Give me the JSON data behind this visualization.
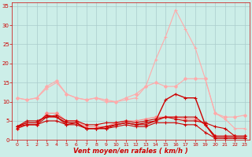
{
  "background_color": "#cceee8",
  "grid_color": "#aacccc",
  "xlabel": "Vent moyen/en rafales ( km/h )",
  "xlabel_color": "#cc0000",
  "tick_color": "#cc0000",
  "xlim": [
    -0.5,
    23.5
  ],
  "ylim": [
    0,
    36
  ],
  "yticks": [
    0,
    5,
    10,
    15,
    20,
    25,
    30,
    35
  ],
  "xticks": [
    0,
    1,
    2,
    3,
    4,
    5,
    6,
    7,
    8,
    9,
    10,
    11,
    12,
    13,
    14,
    15,
    16,
    17,
    18,
    19,
    20,
    21,
    22,
    23
  ],
  "series": [
    {
      "x": [
        0,
        1,
        2,
        3,
        4,
        5,
        6,
        7,
        8,
        9,
        10,
        11,
        12,
        13,
        14,
        15,
        16,
        17,
        18,
        19,
        20,
        21,
        22,
        23
      ],
      "y": [
        11,
        10.5,
        11,
        14,
        15.5,
        12,
        11,
        10.5,
        11,
        10.5,
        10,
        11,
        12,
        14,
        15,
        14,
        14,
        16,
        16,
        16,
        7,
        6,
        6,
        6.5
      ],
      "color": "#ffaaaa",
      "marker": "D",
      "markersize": 2,
      "linewidth": 0.8
    },
    {
      "x": [
        0,
        1,
        2,
        3,
        4,
        5,
        6,
        7,
        8,
        9,
        10,
        11,
        12,
        13,
        14,
        15,
        16,
        17,
        18,
        19,
        20,
        21,
        22,
        23
      ],
      "y": [
        11,
        10.5,
        11,
        13.5,
        15,
        12,
        11,
        10.5,
        11,
        10,
        10,
        10.5,
        11,
        14,
        21,
        27,
        34,
        29,
        24,
        16,
        7,
        5.5,
        3,
        3
      ],
      "color": "#ffaaaa",
      "marker": "+",
      "markersize": 2.5,
      "linewidth": 0.8
    },
    {
      "x": [
        0,
        1,
        2,
        3,
        4,
        5,
        6,
        7,
        8,
        9,
        10,
        11,
        12,
        13,
        14,
        15,
        16,
        17,
        18,
        19,
        20,
        21,
        22,
        23
      ],
      "y": [
        3,
        4,
        4,
        7,
        7,
        5,
        5,
        3.5,
        3.5,
        3.5,
        4.5,
        5,
        5,
        5.5,
        6,
        6,
        6,
        5.5,
        5.5,
        4,
        1,
        1,
        1,
        1
      ],
      "color": "#ff8888",
      "marker": "D",
      "markersize": 2,
      "linewidth": 0.8
    },
    {
      "x": [
        0,
        1,
        2,
        3,
        4,
        5,
        6,
        7,
        8,
        9,
        10,
        11,
        12,
        13,
        14,
        15,
        16,
        17,
        18,
        19,
        20,
        21,
        22,
        23
      ],
      "y": [
        3.5,
        4.5,
        4.5,
        6.5,
        6,
        4.5,
        4.5,
        3,
        3,
        3.5,
        4,
        4.5,
        4,
        4.5,
        5,
        10.5,
        12,
        11,
        11,
        4,
        1,
        1,
        1,
        1
      ],
      "color": "#cc0000",
      "marker": "+",
      "markersize": 2.5,
      "linewidth": 1.0
    },
    {
      "x": [
        0,
        1,
        2,
        3,
        4,
        5,
        6,
        7,
        8,
        9,
        10,
        11,
        12,
        13,
        14,
        15,
        16,
        17,
        18,
        19,
        20,
        21,
        22,
        23
      ],
      "y": [
        3.5,
        5,
        5,
        6,
        6.5,
        5,
        5,
        4,
        4,
        4.5,
        4.5,
        5,
        4.5,
        5,
        5.5,
        6,
        5.5,
        5,
        5,
        4.5,
        3.5,
        3,
        1,
        1
      ],
      "color": "#cc0000",
      "marker": "+",
      "markersize": 2.5,
      "linewidth": 0.8
    },
    {
      "x": [
        0,
        1,
        2,
        3,
        4,
        5,
        6,
        7,
        8,
        9,
        10,
        11,
        12,
        13,
        14,
        15,
        16,
        17,
        18,
        19,
        20,
        21,
        22,
        23
      ],
      "y": [
        3,
        4,
        4,
        6,
        6,
        4,
        4.5,
        3,
        3,
        3,
        4,
        4.5,
        4,
        4,
        5,
        6,
        6,
        6,
        6,
        4,
        0.5,
        0.5,
        0.5,
        0.5
      ],
      "color": "#cc0000",
      "marker": "+",
      "markersize": 2.5,
      "linewidth": 0.8
    },
    {
      "x": [
        0,
        1,
        2,
        3,
        4,
        5,
        6,
        7,
        8,
        9,
        10,
        11,
        12,
        13,
        14,
        15,
        16,
        17,
        18,
        19,
        20,
        21,
        22,
        23
      ],
      "y": [
        3.5,
        4,
        4,
        5,
        5,
        4,
        4,
        3,
        3,
        3,
        3.5,
        4,
        3.5,
        3.5,
        4.5,
        4.5,
        4.5,
        4,
        4,
        2,
        0.5,
        0.5,
        0.5,
        0.5
      ],
      "color": "#cc0000",
      "marker": "+",
      "markersize": 2.5,
      "linewidth": 0.8
    }
  ]
}
